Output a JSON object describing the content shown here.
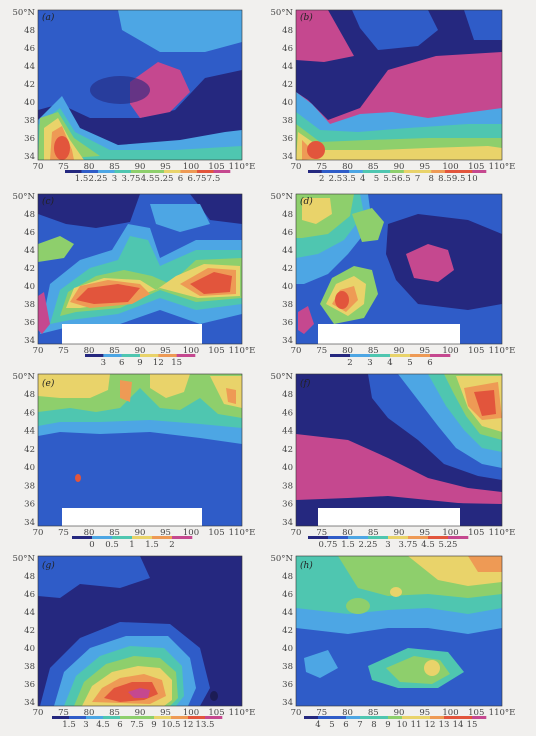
{
  "colors": {
    "navy": "#25287f",
    "blue": "#2f5cc8",
    "sky": "#4da6e4",
    "teal": "#4fc6b0",
    "green": "#8ecf6c",
    "yellow": "#e9d36a",
    "orange": "#ee9a55",
    "red": "#e2553c",
    "magenta": "#c5488f",
    "white": "#ffffff"
  },
  "chart_data": [
    {
      "label": "(a)",
      "type": "heatmap",
      "x_ticks": [
        "70",
        "75",
        "80",
        "85",
        "90",
        "95",
        "100",
        "105",
        "110°E"
      ],
      "y_ticks": [
        "50°N",
        "48",
        "46",
        "44",
        "42",
        "40",
        "38",
        "36",
        "34"
      ],
      "colorbar_values": [
        "1.5",
        "2.25",
        "3",
        "3.75",
        "4.5",
        "5.25",
        "6",
        "6.75",
        "7.5"
      ]
    },
    {
      "label": "(b)",
      "type": "heatmap",
      "x_ticks": [
        "70",
        "75",
        "80",
        "85",
        "90",
        "95",
        "100",
        "105",
        "110°E"
      ],
      "y_ticks": [
        "50°N",
        "48",
        "46",
        "44",
        "42",
        "40",
        "38",
        "36",
        "34"
      ],
      "colorbar_values": [
        "2",
        "2.5",
        "3.5",
        "4",
        "5",
        "5.5",
        "6.5",
        "7",
        "8",
        "8.5",
        "9.5",
        "10"
      ]
    },
    {
      "label": "(c)",
      "type": "heatmap",
      "x_ticks": [
        "70",
        "75",
        "80",
        "85",
        "90",
        "95",
        "100",
        "105",
        "110°E"
      ],
      "y_ticks": [
        "50°N",
        "48",
        "46",
        "44",
        "42",
        "40",
        "38",
        "36",
        "34"
      ],
      "colorbar_values": [
        "3",
        "6",
        "9",
        "12",
        "15"
      ]
    },
    {
      "label": "(d)",
      "type": "heatmap",
      "x_ticks": [
        "70",
        "75",
        "80",
        "85",
        "90",
        "95",
        "100",
        "105",
        "110°E"
      ],
      "y_ticks": [
        "50°N",
        "48",
        "46",
        "44",
        "42",
        "40",
        "38",
        "36",
        "34"
      ],
      "colorbar_values": [
        "2",
        "3",
        "4",
        "5",
        "6"
      ]
    },
    {
      "label": "(e)",
      "type": "heatmap",
      "x_ticks": [
        "70",
        "75",
        "80",
        "85",
        "90",
        "95",
        "100",
        "105",
        "110°E"
      ],
      "y_ticks": [
        "50°N",
        "48",
        "46",
        "44",
        "42",
        "40",
        "38",
        "36",
        "34"
      ],
      "colorbar_values": [
        "0",
        "0.5",
        "1",
        "1.5",
        "2"
      ]
    },
    {
      "label": "(f)",
      "type": "heatmap",
      "x_ticks": [
        "70",
        "75",
        "80",
        "85",
        "90",
        "95",
        "100",
        "105",
        "110°E"
      ],
      "y_ticks": [
        "50°N",
        "48",
        "46",
        "44",
        "42",
        "40",
        "38",
        "36",
        "34"
      ],
      "colorbar_values": [
        "0.75",
        "1.5",
        "2.25",
        "3",
        "3.75",
        "4.5",
        "5.25"
      ]
    },
    {
      "label": "(g)",
      "type": "heatmap",
      "x_ticks": [
        "70",
        "75",
        "80",
        "85",
        "90",
        "95",
        "100",
        "105",
        "110°E"
      ],
      "y_ticks": [
        "50°N",
        "48",
        "46",
        "44",
        "42",
        "40",
        "38",
        "36",
        "34"
      ],
      "colorbar_values": [
        "1.5",
        "3",
        "4.5",
        "6",
        "7.5",
        "9",
        "10.5",
        "12",
        "13.5"
      ]
    },
    {
      "label": "(h)",
      "type": "heatmap",
      "x_ticks": [
        "70",
        "75",
        "80",
        "85",
        "90",
        "95",
        "100",
        "105",
        "110°E"
      ],
      "y_ticks": [
        "50°N",
        "48",
        "46",
        "44",
        "42",
        "40",
        "38",
        "36",
        "34"
      ],
      "colorbar_values": [
        "4",
        "5",
        "6",
        "7",
        "8",
        "9",
        "10",
        "11",
        "12",
        "13",
        "14",
        "15"
      ]
    }
  ]
}
